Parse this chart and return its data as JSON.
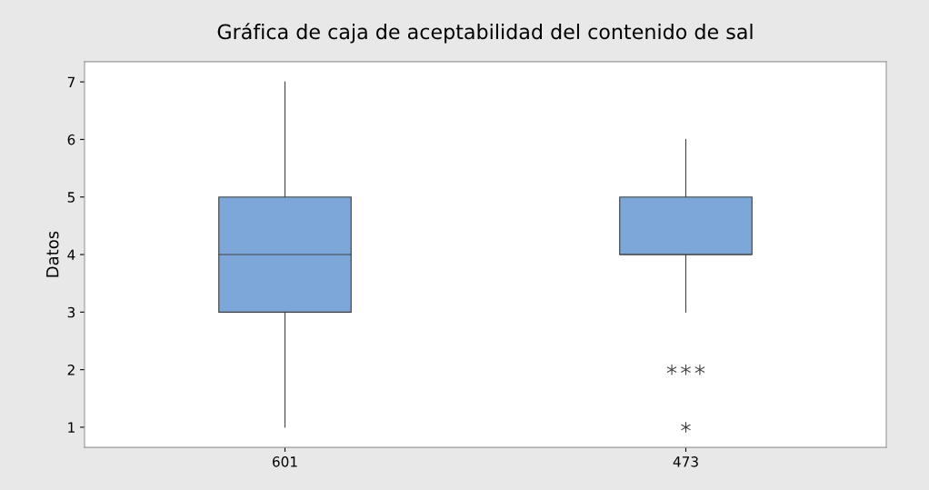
{
  "chart_data": {
    "type": "box",
    "title": "Gráfica de caja de aceptabilidad del contenido de sal",
    "ylabel": "Datos",
    "categories": [
      "601",
      "473"
    ],
    "boxes": [
      {
        "low": 1,
        "q1": 3,
        "median": 4,
        "q3": 5,
        "high": 7
      },
      {
        "low": 3,
        "q1": 4,
        "median": 4,
        "q3": 5,
        "high": 6,
        "outliers": [
          2,
          2,
          2,
          1
        ]
      }
    ],
    "color": "#7da7d9",
    "ylim": [
      0.65,
      7.35
    ],
    "yticks": [
      1,
      2,
      3,
      4,
      5,
      6,
      7
    ],
    "grid": false,
    "legend": false
  }
}
